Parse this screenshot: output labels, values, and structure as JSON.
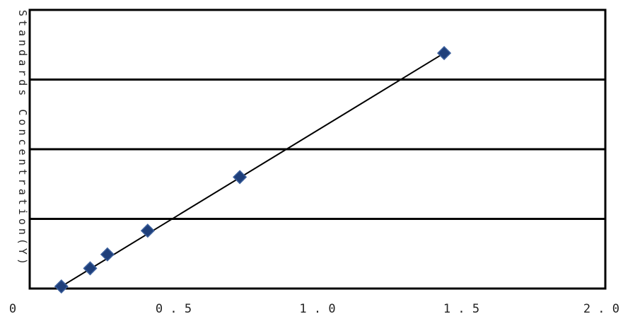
{
  "chart_data": {
    "type": "scatter",
    "ylabel": "Standards Concentration(Y)",
    "xlim": [
      0,
      2.0
    ],
    "ylim": [
      0,
      4
    ],
    "x_ticks": [
      {
        "value": 0,
        "label": "0"
      },
      {
        "value": 0.5,
        "label": "0.5"
      },
      {
        "value": 1.0,
        "label": "1.0"
      },
      {
        "value": 1.5,
        "label": "1.5"
      },
      {
        "value": 2.0,
        "label": "2.0"
      }
    ],
    "y_gridlines": [
      1,
      2,
      3
    ],
    "grid": "horizontal",
    "points": [
      {
        "x": 0.11,
        "y": 0.03
      },
      {
        "x": 0.21,
        "y": 0.29
      },
      {
        "x": 0.27,
        "y": 0.49
      },
      {
        "x": 0.41,
        "y": 0.83
      },
      {
        "x": 0.73,
        "y": 1.6
      },
      {
        "x": 1.44,
        "y": 3.38
      }
    ],
    "fit_line": {
      "x": [
        0.11,
        1.44
      ],
      "y": [
        0.03,
        3.38
      ]
    },
    "colors": {
      "point": "#1f3f7a",
      "line": "#000000",
      "grid": "#000000",
      "frame": "#000000"
    }
  }
}
